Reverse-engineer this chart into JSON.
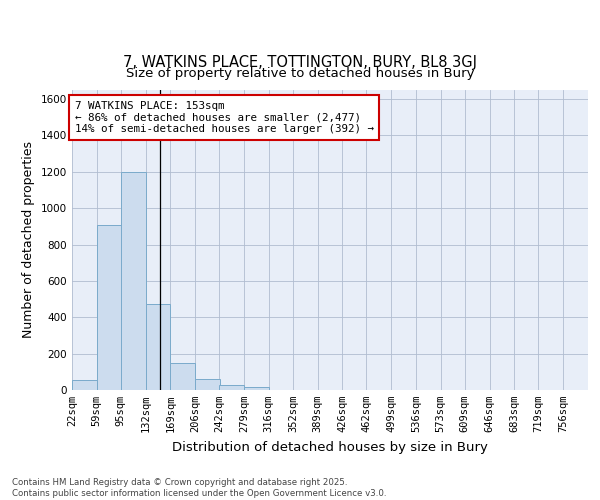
{
  "title1": "7, WATKINS PLACE, TOTTINGTON, BURY, BL8 3GJ",
  "title2": "Size of property relative to detached houses in Bury",
  "xlabel": "Distribution of detached houses by size in Bury",
  "ylabel": "Number of detached properties",
  "bar_color": "#ccdcee",
  "bar_edge_color": "#7aaacb",
  "background_color": "#e8eef8",
  "bin_labels": [
    "22sqm",
    "59sqm",
    "95sqm",
    "132sqm",
    "169sqm",
    "206sqm",
    "242sqm",
    "279sqm",
    "316sqm",
    "352sqm",
    "389sqm",
    "426sqm",
    "462sqm",
    "499sqm",
    "536sqm",
    "573sqm",
    "609sqm",
    "646sqm",
    "683sqm",
    "719sqm",
    "756sqm"
  ],
  "bin_edges": [
    22,
    59,
    95,
    132,
    169,
    206,
    242,
    279,
    316,
    352,
    389,
    426,
    462,
    499,
    536,
    573,
    609,
    646,
    683,
    719,
    756
  ],
  "bar_heights": [
    55,
    910,
    1200,
    475,
    150,
    58,
    28,
    18,
    0,
    0,
    0,
    0,
    0,
    0,
    0,
    0,
    0,
    0,
    0,
    0,
    0
  ],
  "ylim": [
    0,
    1650
  ],
  "yticks": [
    0,
    200,
    400,
    600,
    800,
    1000,
    1200,
    1400,
    1600
  ],
  "vline_x_label": "132sqm",
  "vline_bin_index": 3,
  "annotation_text": "7 WATKINS PLACE: 153sqm\n← 86% of detached houses are smaller (2,477)\n14% of semi-detached houses are larger (392) →",
  "annotation_box_color": "white",
  "annotation_border_color": "#cc0000",
  "footer_text": "Contains HM Land Registry data © Crown copyright and database right 2025.\nContains public sector information licensed under the Open Government Licence v3.0.",
  "grid_color": "#b0bcd0",
  "title_fontsize": 10.5,
  "subtitle_fontsize": 9.5,
  "tick_fontsize": 7.5,
  "ylabel_fontsize": 9,
  "xlabel_fontsize": 9.5
}
